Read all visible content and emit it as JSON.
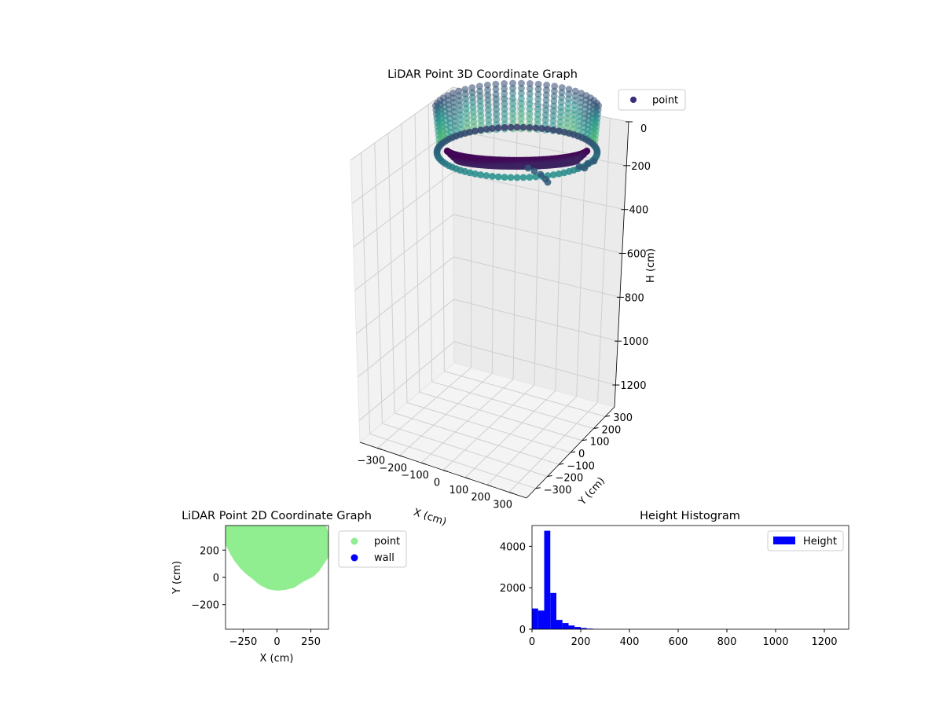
{
  "figure": {
    "colors": {
      "viridis_dark": "#440154",
      "viridis_mid": "#21918c",
      "viridis_light": "#5ec962",
      "scatter2d_point": "#90ee90",
      "wall": "#0000ff",
      "histogram": "#0000ff"
    }
  },
  "chart_data": [
    {
      "id": "lidar-3d",
      "type": "scatter",
      "projection": "3d",
      "title": "LiDAR Point 3D Coordinate Graph",
      "xlabel": "X (cm)",
      "ylabel": "Y (cm)",
      "zlabel": "H (cm)",
      "xticks": [
        "−300",
        "−200",
        "−100",
        "0",
        "100",
        "200",
        "300"
      ],
      "yticks": [
        "−300",
        "−200",
        "−100",
        "0",
        "100",
        "200",
        "300"
      ],
      "zticks": [
        "0",
        "200",
        "400",
        "600",
        "800",
        "1000",
        "1200"
      ],
      "xlim": [
        -380,
        380
      ],
      "ylim": [
        -380,
        380
      ],
      "zlim_inverted": [
        1300,
        0
      ],
      "legend": {
        "position": "top-right",
        "entries": [
          {
            "label": "point",
            "color": "#3b2a7e"
          }
        ]
      },
      "shape": {
        "description_free": true,
        "ring_radius_cm": [
          230,
          380
        ],
        "height_range_cm": [
          0,
          260
        ]
      }
    },
    {
      "id": "lidar-2d",
      "type": "scatter",
      "title": "LiDAR Point 2D Coordinate Graph",
      "xlabel": "X (cm)",
      "ylabel": "Y (cm)",
      "xticks": [
        "−250",
        "0",
        "250"
      ],
      "yticks": [
        "−200",
        "0",
        "200"
      ],
      "xlim": [
        -380,
        380
      ],
      "ylim": [
        -380,
        380
      ],
      "series": [
        {
          "name": "point",
          "color": "#90ee90",
          "extent": {
            "x": [
              -380,
              380
            ],
            "y": [
              -80,
              380
            ]
          }
        },
        {
          "name": "wall",
          "color": "#0000ff",
          "extent": null
        }
      ],
      "legend": {
        "position": "outside-right"
      }
    },
    {
      "id": "height-hist",
      "type": "bar",
      "title": "Height Histogram",
      "xticks": [
        "0",
        "200",
        "400",
        "600",
        "800",
        "1000",
        "1200"
      ],
      "yticks": [
        "0",
        "2000",
        "4000"
      ],
      "xlim": [
        0,
        1300
      ],
      "ylim": [
        0,
        5000
      ],
      "bin_width": 25,
      "bins_start": [
        0,
        25,
        50,
        75,
        100,
        125,
        150,
        175,
        200,
        225,
        250
      ],
      "counts": [
        1000,
        900,
        4750,
        1750,
        450,
        300,
        180,
        110,
        60,
        30,
        10
      ],
      "series": [
        {
          "name": "Height",
          "color": "#0000ff"
        }
      ],
      "legend": {
        "position": "top-right"
      }
    }
  ]
}
